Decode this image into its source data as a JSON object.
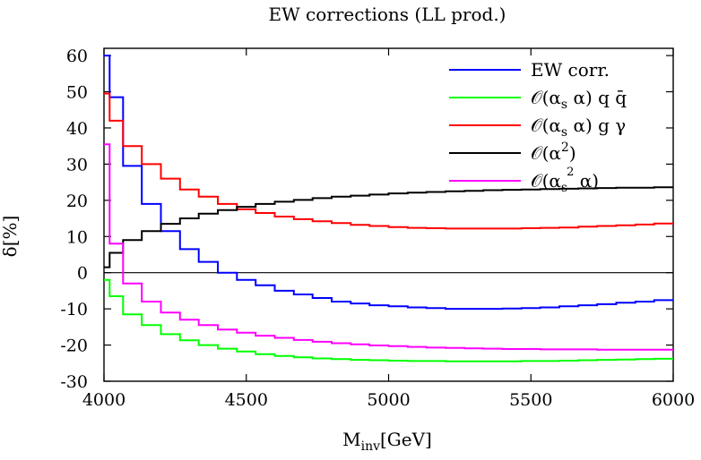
{
  "chart_data": {
    "type": "line",
    "title": "EW corrections (LL prod.)",
    "xlabel": "M_inv[GeV]",
    "xlabel_parts": {
      "main": "M",
      "sub": "inv",
      "rest": "[GeV]"
    },
    "ylabel": "δ[%]",
    "xlim": [
      4000,
      6000
    ],
    "ylim": [
      -30,
      62
    ],
    "x_ticks": [
      4000,
      4500,
      5000,
      5500,
      6000
    ],
    "x_tick_labels": [
      "4000",
      "4500",
      "5000",
      "5500",
      "6000"
    ],
    "y_ticks": [
      -30,
      -20,
      -10,
      0,
      10,
      20,
      30,
      40,
      50,
      60
    ],
    "y_tick_labels": [
      "-30",
      "-20",
      "-10",
      "0",
      "10",
      "20",
      "30",
      "40",
      "50",
      "60"
    ],
    "grid": false,
    "legend_position": "top-right",
    "bin_edges": [
      4000,
      4020,
      4067,
      4133,
      4200,
      4267,
      4333,
      4400,
      4467,
      4533,
      4600,
      4667,
      4733,
      4800,
      4867,
      4933,
      5000,
      5067,
      5133,
      5200,
      5267,
      5333,
      5400,
      5467,
      5533,
      5600,
      5667,
      5733,
      5800,
      5867,
      5933,
      6000
    ],
    "series": [
      {
        "name": "EW corr.",
        "legend_label": "EW corr.",
        "color": "#0000ff",
        "values": [
          60,
          48.5,
          29.5,
          19,
          11.5,
          6.5,
          3,
          0,
          -2,
          -3.5,
          -5,
          -6,
          -7,
          -8,
          -8.5,
          -9,
          -9.3,
          -9.6,
          -9.8,
          -10,
          -10,
          -10,
          -9.9,
          -9.8,
          -9.6,
          -9.3,
          -9,
          -8.7,
          -8.3,
          -8,
          -7.6
        ]
      },
      {
        "name": "O(αsα) qq̄",
        "legend_label": "𝒪(α_s α)   q q̄",
        "color": "#00ff00",
        "values": [
          -2,
          -6.5,
          -11.5,
          -14.5,
          -17,
          -18.7,
          -20,
          -21,
          -21.8,
          -22.5,
          -23,
          -23.4,
          -23.7,
          -23.9,
          -24.1,
          -24.2,
          -24.3,
          -24.4,
          -24.4,
          -24.5,
          -24.5,
          -24.5,
          -24.5,
          -24.4,
          -24.4,
          -24.3,
          -24.2,
          -24.1,
          -24,
          -23.9,
          -23.8
        ]
      },
      {
        "name": "O(αsα) gγ",
        "legend_label": "𝒪(α_s α)   g γ",
        "color": "#ff0000",
        "values": [
          49.5,
          42,
          35,
          30,
          26,
          23,
          21,
          19,
          17.5,
          16.5,
          15.5,
          14.8,
          14.2,
          13.7,
          13.2,
          12.9,
          12.6,
          12.4,
          12.3,
          12.2,
          12.2,
          12.2,
          12.2,
          12.3,
          12.4,
          12.5,
          12.7,
          12.9,
          13.1,
          13.3,
          13.6
        ]
      },
      {
        "name": "O(α²)",
        "legend_label": "𝒪(α²)",
        "color": "#000000",
        "values": [
          1.5,
          5.5,
          9,
          11.5,
          13.5,
          15,
          16.3,
          17.3,
          18.2,
          19,
          19.6,
          20.1,
          20.6,
          21,
          21.3,
          21.6,
          21.9,
          22.1,
          22.3,
          22.5,
          22.6,
          22.8,
          22.9,
          23,
          23.1,
          23.2,
          23.3,
          23.4,
          23.5,
          23.5,
          23.6
        ]
      },
      {
        "name": "O(αs²α)",
        "legend_label": "𝒪(α_s² α)",
        "color": "#ff00ff",
        "values": [
          35.5,
          8,
          -3,
          -8,
          -11,
          -13,
          -14.5,
          -15.7,
          -16.6,
          -17.4,
          -18,
          -18.6,
          -19.1,
          -19.5,
          -19.8,
          -20.1,
          -20.3,
          -20.5,
          -20.7,
          -20.8,
          -20.9,
          -21,
          -21.1,
          -21.1,
          -21.2,
          -21.2,
          -21.2,
          -21.3,
          -21.3,
          -21.3,
          -21.3
        ]
      }
    ]
  }
}
